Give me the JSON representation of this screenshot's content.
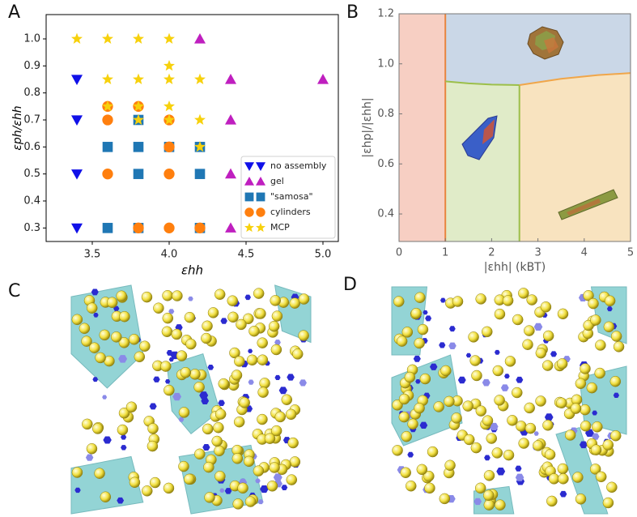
{
  "panel_labels": [
    "A",
    "B",
    "C",
    "D"
  ],
  "chart_data": [
    {
      "type": "scatter",
      "xlabel": "εhh",
      "ylabel": "εph/εhh",
      "xlim": [
        3.2,
        5.1
      ],
      "ylim": [
        0.25,
        1.09
      ],
      "xticks": [
        3.5,
        {
          "value": 4,
          "label": "4.0"
        },
        4.5,
        {
          "value": 5,
          "label": "5.0"
        }
      ],
      "yticks": [
        0.3,
        0.4,
        0.5,
        0.6,
        0.7,
        0.8,
        0.9,
        {
          "value": 1,
          "label": "1.0"
        }
      ],
      "legend": "lower right",
      "series": [
        {
          "name": "no assembly",
          "color": "#1010e8",
          "marker": "triangle-down",
          "x": [
            3.4,
            3.4,
            3.4,
            3.4
          ],
          "y": [
            0.85,
            0.7,
            0.5,
            0.3
          ]
        },
        {
          "name": "gel",
          "color": "#bf1fbf",
          "marker": "triangle-up",
          "x": [
            4.2,
            4.4,
            5.0,
            4.4,
            4.4,
            4.4
          ],
          "y": [
            1.0,
            0.85,
            0.85,
            0.7,
            0.5,
            0.3
          ]
        },
        {
          "name": "\"samosa\"",
          "color": "#1f77b4",
          "marker": "square",
          "x": [
            3.6,
            3.8,
            4.0,
            4.2,
            3.8,
            4.2,
            3.6,
            3.8,
            4.2,
            3.8
          ],
          "y": [
            0.6,
            0.6,
            0.6,
            0.6,
            0.5,
            0.5,
            0.3,
            0.3,
            0.3,
            0.7
          ]
        },
        {
          "name": "cylinders",
          "color": "#ff7f0e",
          "marker": "circle",
          "x": [
            3.6,
            3.8,
            3.6,
            4.0,
            3.6,
            4.0,
            4.0,
            3.8,
            4.2,
            4.0
          ],
          "y": [
            0.75,
            0.75,
            0.7,
            0.7,
            0.5,
            0.5,
            0.3,
            0.3,
            0.3,
            0.6
          ]
        },
        {
          "name": "MCP",
          "color": "#f7d10c",
          "marker": "star",
          "x": [
            3.4,
            3.6,
            3.8,
            4.0,
            4.0,
            3.6,
            3.8,
            4.0,
            4.2,
            4.0,
            3.6,
            3.8,
            3.8,
            4.0,
            4.2,
            4.2
          ],
          "y": [
            1.0,
            1.0,
            1.0,
            1.0,
            0.9,
            0.85,
            0.85,
            0.85,
            0.85,
            0.75,
            0.75,
            0.75,
            0.7,
            0.7,
            0.7,
            0.6
          ]
        }
      ]
    },
    {
      "type": "region",
      "xlabel": "|εhh| (kBT)",
      "ylabel": "|εhp|/|εhh|",
      "xlim": [
        0,
        5
      ],
      "ylim": [
        0.29,
        1.2
      ],
      "xticks": [
        0,
        1,
        2,
        3,
        4,
        5
      ],
      "yticks": [
        0.4,
        0.6,
        0.8,
        {
          "value": 1,
          "label": "1.0"
        },
        1.2
      ],
      "regions": [
        {
          "color": "#f7cfc3",
          "x": [
            0,
            1,
            1,
            0
          ],
          "y": [
            0.29,
            0.29,
            1.2,
            1.2
          ]
        },
        {
          "color": "#cad7e7",
          "x": [
            1,
            5,
            5,
            4.3,
            3.5,
            2.6,
            2,
            1.5,
            1
          ],
          "y": [
            1.2,
            1.2,
            0.963,
            0.955,
            0.94,
            0.915,
            0.917,
            0.922,
            0.93
          ]
        },
        {
          "color": "#e0ebc8",
          "x": [
            1,
            1.5,
            2,
            2.6,
            2.6,
            1
          ],
          "y": [
            0.93,
            0.922,
            0.917,
            0.915,
            0.29,
            0.29
          ]
        },
        {
          "color": "#f8e3bf",
          "x": [
            2.6,
            3.5,
            4.3,
            5,
            5,
            2.6
          ],
          "y": [
            0.915,
            0.94,
            0.955,
            0.963,
            0.29,
            0.29
          ]
        }
      ],
      "boundaries": [
        {
          "color": "#e8843f",
          "x": [
            1,
            1
          ],
          "y": [
            0.29,
            1.2
          ]
        },
        {
          "color": "#9cbf4a",
          "x": [
            1,
            1.5,
            2,
            2.6
          ],
          "y": [
            0.93,
            0.922,
            0.917,
            0.915
          ]
        },
        {
          "color": "#9cbf4a",
          "x": [
            2.6,
            2.6
          ],
          "y": [
            0.29,
            0.915
          ]
        },
        {
          "color": "#f0a64a",
          "x": [
            2.6,
            3.5,
            4.3,
            5
          ],
          "y": [
            0.915,
            0.94,
            0.955,
            0.963
          ]
        }
      ]
    }
  ]
}
